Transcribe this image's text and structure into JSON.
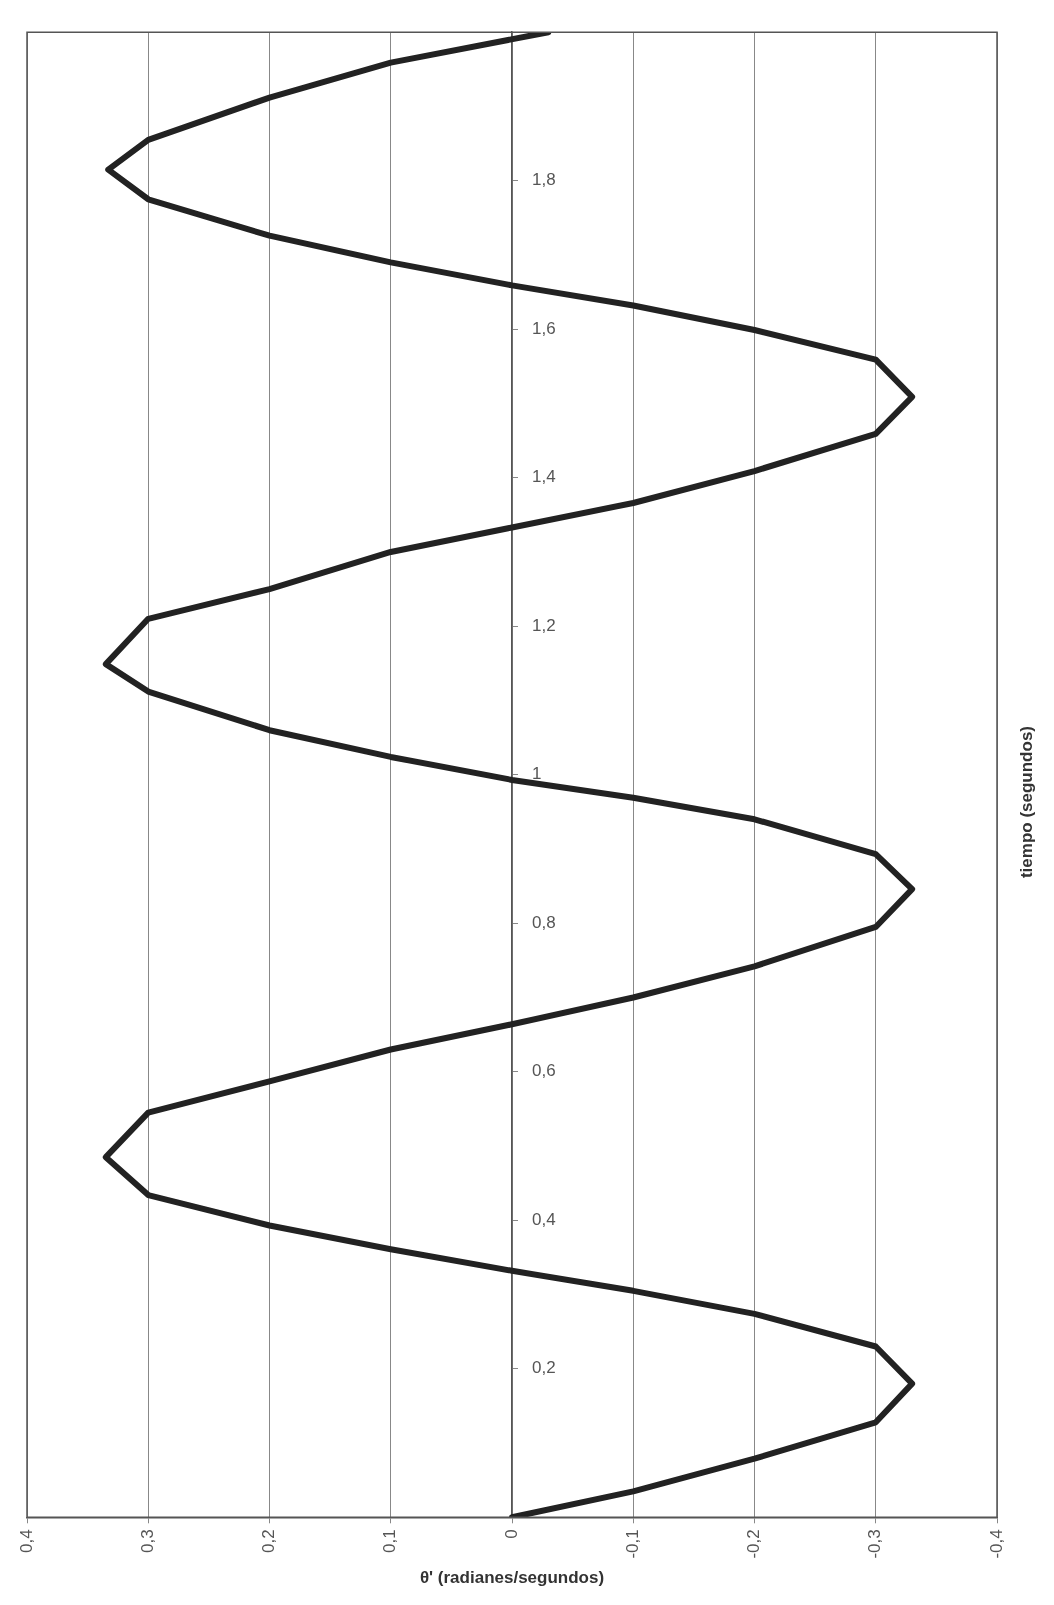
{
  "chart_data": {
    "type": "line",
    "orientation": "horizontal",
    "xlabel": "θ' (radianes/segundos)",
    "ylabel": "tiempo (segundos)",
    "series": [
      {
        "color": "#222222",
        "x": [
          0,
          0.035,
          0.079,
          0.128,
          0.18,
          0.23,
          0.274,
          0.305,
          0.332,
          0.361,
          0.393,
          0.434,
          0.485,
          0.545,
          0.587,
          0.63,
          0.664,
          0.7,
          0.742,
          0.795,
          0.846,
          0.893,
          0.94,
          0.969,
          0.993,
          1.024,
          1.06,
          1.112,
          1.149,
          1.21,
          1.25,
          1.3,
          1.333,
          1.366,
          1.409,
          1.459,
          1.509,
          1.559,
          1.599,
          1.632,
          1.659,
          1.69,
          1.726,
          1.775,
          1.815,
          1.855,
          1.912,
          1.959,
          2.0
        ],
        "values": [
          0,
          -0.1,
          -0.2,
          -0.3,
          -0.33,
          -0.3,
          -0.2,
          -0.1,
          0,
          0.1,
          0.2,
          0.3,
          0.335,
          0.3,
          0.2,
          0.1,
          0,
          -0.1,
          -0.2,
          -0.3,
          -0.33,
          -0.3,
          -0.2,
          -0.1,
          0,
          0.1,
          0.2,
          0.3,
          0.335,
          0.3,
          0.2,
          0.1,
          0,
          -0.1,
          -0.2,
          -0.3,
          -0.33,
          -0.3,
          -0.2,
          -0.1,
          0,
          0.1,
          0.2,
          0.3,
          0.333,
          0.3,
          0.2,
          0.1,
          -0.03
        ]
      }
    ],
    "ylim": [
      0,
      2
    ],
    "yticks": [
      {
        "value": 0,
        "label": null
      },
      {
        "value": 0.2,
        "label": "0,2"
      },
      {
        "value": 0.4,
        "label": "0,4"
      },
      {
        "value": 0.6,
        "label": "0,6"
      },
      {
        "value": 0.8,
        "label": "0,8"
      },
      1,
      {
        "value": 1.2,
        "label": "1,2"
      },
      {
        "value": 1.4,
        "label": "1,4"
      },
      {
        "value": 1.6,
        "label": "1,6"
      },
      {
        "value": 1.8,
        "label": "1,8"
      }
    ],
    "xlim": [
      0.4,
      -0.4
    ],
    "xticks": [
      {
        "value": 0.4,
        "label": "0,4"
      },
      {
        "value": 0.3,
        "label": "0,3"
      },
      {
        "value": 0.2,
        "label": "0,2"
      },
      {
        "value": 0.1,
        "label": "0,1"
      },
      0,
      {
        "value": -0.1,
        "label": "-0,1"
      },
      {
        "value": -0.2,
        "label": "-0,2"
      },
      {
        "value": -0.3,
        "label": "-0,3"
      },
      {
        "value": -0.4,
        "label": "-0,4"
      }
    ],
    "grid": "x"
  }
}
